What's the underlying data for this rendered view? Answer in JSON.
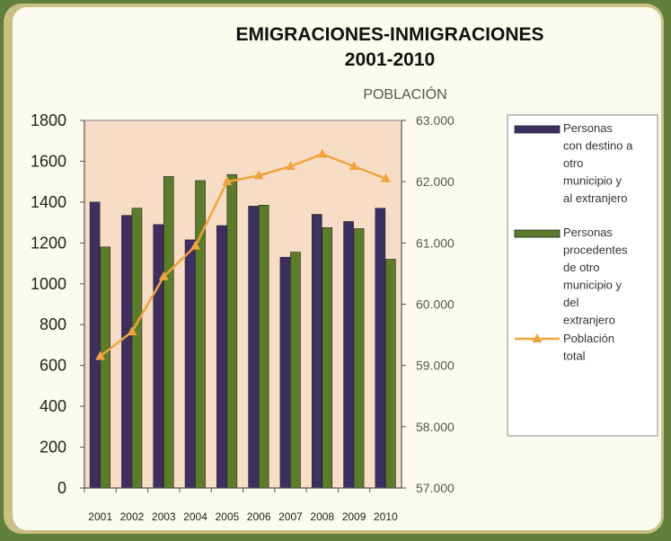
{
  "chart_data": {
    "type": "bar",
    "title": "EMIGRACIONES-INMIGRACIONES",
    "subtitle": "2001-2010",
    "y2label": "POBLACIÓN",
    "categories": [
      "2001",
      "2002",
      "2003",
      "2004",
      "2005",
      "2006",
      "2007",
      "2008",
      "2009",
      "2010"
    ],
    "ylim": [
      0,
      1800
    ],
    "yticks": [
      "0",
      "200",
      "400",
      "600",
      "800",
      "1000",
      "1200",
      "1400",
      "1600",
      "1800"
    ],
    "y2lim": [
      57000,
      63000
    ],
    "y2ticks": [
      "57.000",
      "58.000",
      "59.000",
      "60.000",
      "61.000",
      "62.000",
      "63.000"
    ],
    "series": [
      {
        "name": "Personas con destino a otro municipio y al extranjero",
        "type": "bar",
        "color": "#3e2f63",
        "values": [
          1400,
          1335,
          1290,
          1215,
          1285,
          1380,
          1130,
          1340,
          1305,
          1370
        ]
      },
      {
        "name": "Personas procedentes de otro municipio y del extranjero",
        "type": "bar",
        "color": "#5b7d2a",
        "values": [
          1180,
          1370,
          1525,
          1505,
          1535,
          1385,
          1155,
          1275,
          1270,
          1120
        ]
      },
      {
        "name": "Población total",
        "type": "line",
        "axis": "right",
        "color": "#f2a33c",
        "values": [
          59150,
          59550,
          60450,
          60950,
          62000,
          62100,
          62250,
          62450,
          62250,
          62050
        ]
      }
    ],
    "legend": [
      [
        "Personas",
        "con destino  a",
        "otro",
        "municipio y",
        "al extranjero"
      ],
      [
        "Personas",
        "procedentes",
        "de otro",
        "municipio y",
        "del",
        "extranjero"
      ],
      [
        "Población",
        "total"
      ]
    ],
    "legend_position": "right",
    "plot_background": "#f8ddc6"
  }
}
